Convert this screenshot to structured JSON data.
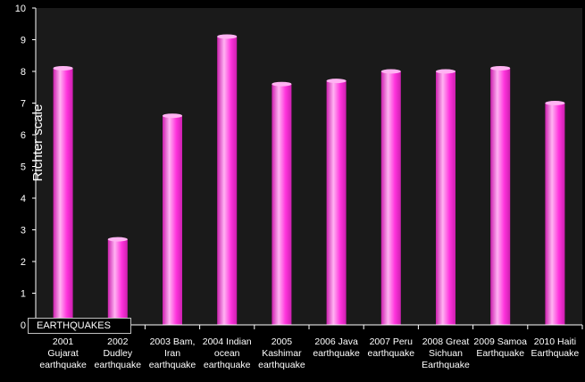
{
  "chart_data": {
    "type": "bar",
    "title": "",
    "ylabel": "Richter scale",
    "xlabel": "",
    "legend": {
      "label": "EARTHQUAKES",
      "placement": "bottom-left"
    },
    "ylim": [
      0,
      10
    ],
    "yticks": [
      "0",
      "1",
      "2",
      "3",
      "4",
      "5",
      "6",
      "7",
      "8",
      "9",
      "10"
    ],
    "grid": false,
    "categories": [
      [
        "2001",
        "Gujarat",
        "earthquake"
      ],
      [
        "2002",
        "Dudley",
        "earthquake"
      ],
      [
        "2003 Bam,",
        "Iran",
        "earthquake"
      ],
      [
        "2004 Indian",
        "ocean",
        "earthquake"
      ],
      [
        "2005",
        "Kashimar",
        "earthquake"
      ],
      [
        "2006 Java",
        "earthquake"
      ],
      [
        "2007 Peru",
        "earthquake"
      ],
      [
        "2008 Great",
        "Sichuan",
        "Earthquake"
      ],
      [
        "2009 Samoa",
        "Earthquake"
      ],
      [
        "2010 Haiti",
        "Earthquake"
      ]
    ],
    "values": [
      8.1,
      2.7,
      6.6,
      9.1,
      7.6,
      7.7,
      8.0,
      8.0,
      8.1,
      7.0
    ],
    "colors": {
      "background": "#000000",
      "plot_area": "#1a1a1a",
      "bar": "#ff33dd",
      "bar_highlight": "#ffb3f2",
      "bar_shadow": "#cc1fae",
      "text": "#ffffff",
      "axis": "#ffffff"
    }
  }
}
